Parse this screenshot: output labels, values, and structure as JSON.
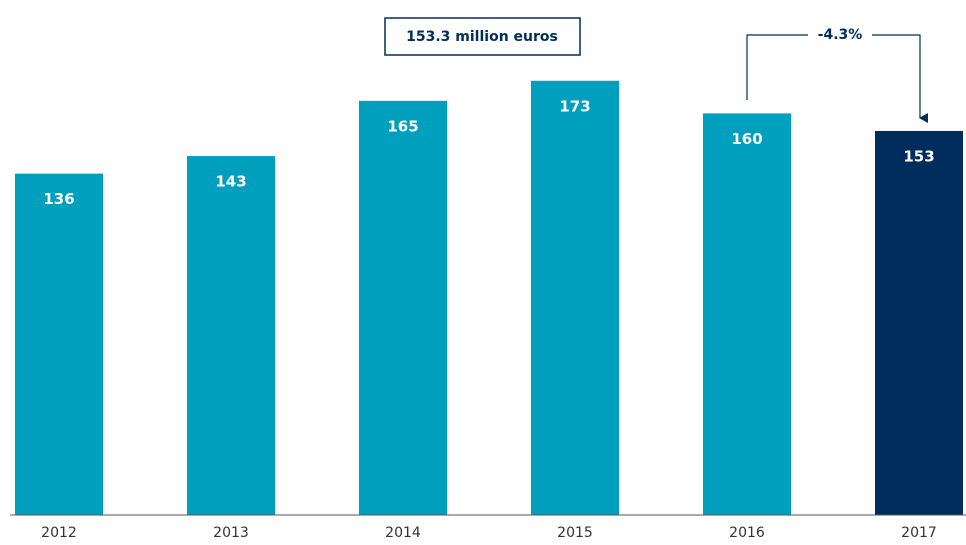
{
  "chart_data": {
    "type": "bar",
    "categories": [
      "2012",
      "2013",
      "2014",
      "2015",
      "2016",
      "2017"
    ],
    "values": [
      136,
      143,
      165,
      173,
      160,
      153
    ],
    "colors": [
      "#009fbd",
      "#009fbd",
      "#009fbd",
      "#009fbd",
      "#009fbd",
      "#002d5c"
    ],
    "ylim": [
      0,
      200
    ],
    "total_annotation": "153.3 million euros",
    "change_annotation": "-4.3%"
  }
}
